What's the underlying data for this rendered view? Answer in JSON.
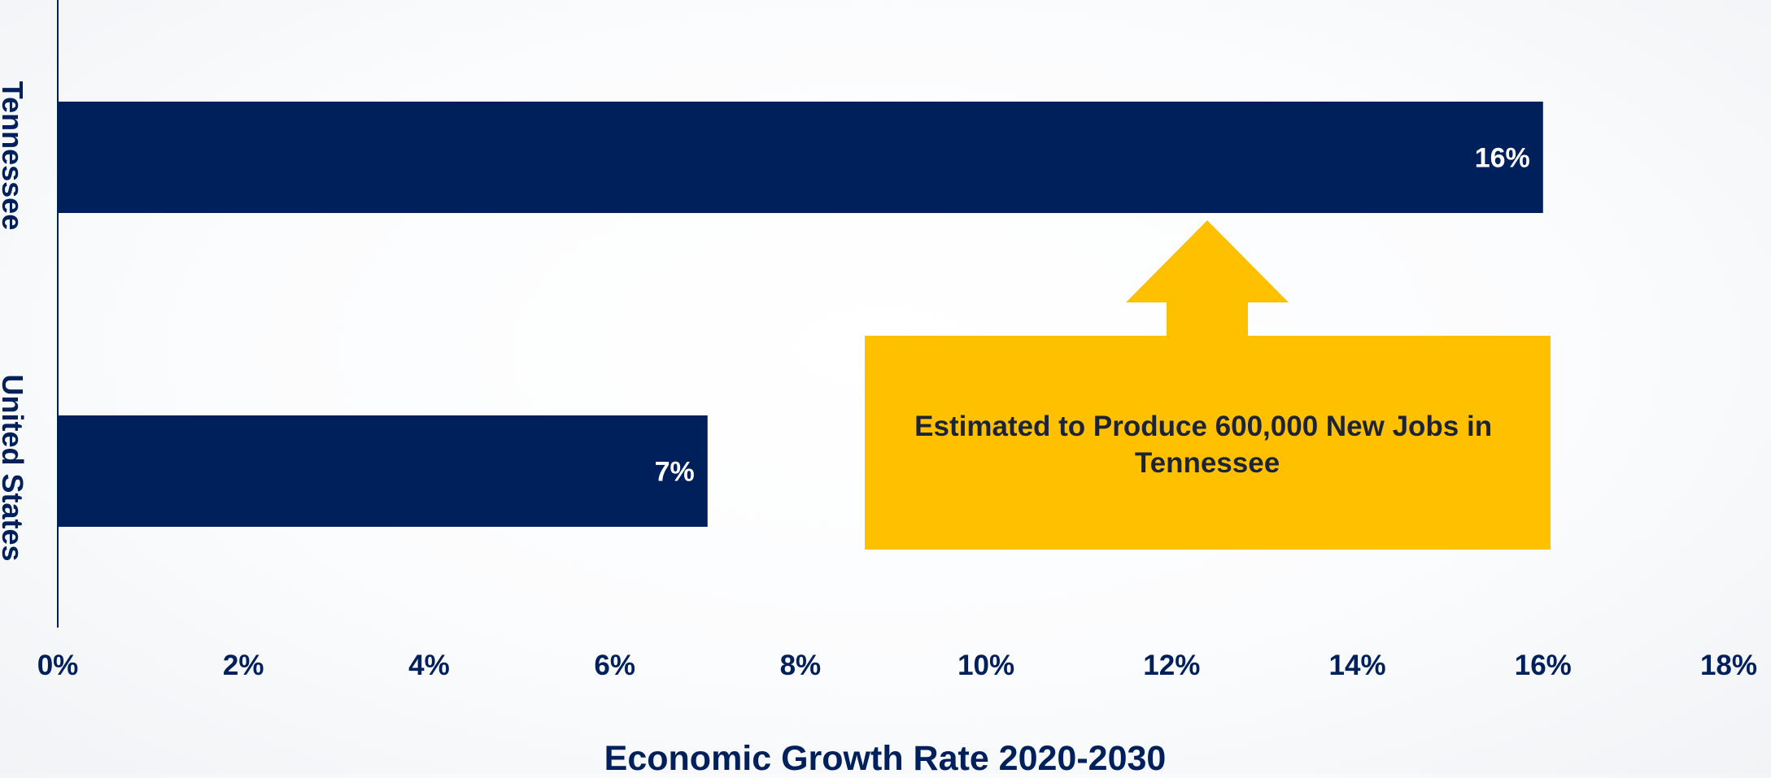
{
  "chart_data": {
    "type": "bar",
    "orientation": "horizontal",
    "categories": [
      "Tennessee",
      "United States"
    ],
    "values": [
      16,
      7
    ],
    "data_labels": [
      "16%",
      "7%"
    ],
    "xlabel": "Economic Growth Rate 2020-2030",
    "ylabel": "",
    "title": "",
    "xlim": [
      0,
      18
    ],
    "x_ticks": [
      0,
      2,
      4,
      6,
      8,
      10,
      12,
      14,
      16,
      18
    ],
    "x_tick_labels": [
      "0%",
      "2%",
      "4%",
      "6%",
      "8%",
      "10%",
      "12%",
      "14%",
      "16%",
      "18%"
    ],
    "grid": false,
    "legend": "none",
    "annotation": {
      "text_lines": [
        "Estimated to Produce 600,000 New Jobs in",
        "Tennessee"
      ],
      "points_to": "Tennessee"
    },
    "colors": {
      "bar": "#00205b",
      "text": "#00205b",
      "data_label": "#ffffff",
      "callout": "#ffc000",
      "callout_text": "#1c2434"
    }
  }
}
